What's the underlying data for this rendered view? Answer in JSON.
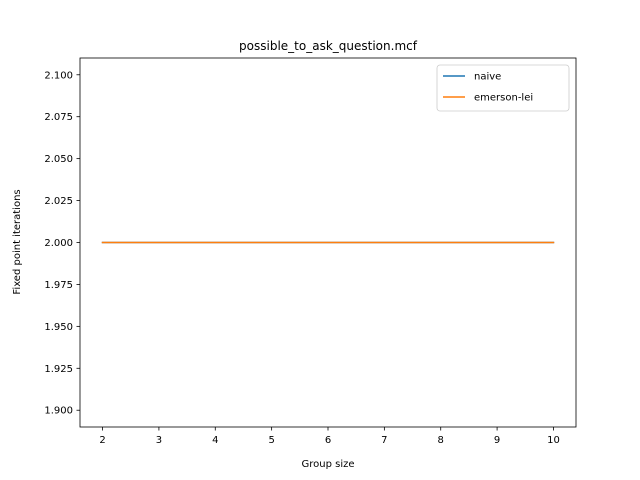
{
  "chart_data": {
    "type": "line",
    "title": "possible_to_ask_question.mcf",
    "xlabel": "Group size",
    "ylabel": "Fixed point iterations",
    "xlim": [
      1.6,
      10.4
    ],
    "ylim": [
      1.89,
      2.11
    ],
    "x_ticks": [
      2,
      3,
      4,
      5,
      6,
      7,
      8,
      9,
      10
    ],
    "y_ticks": [
      1.9,
      1.925,
      1.95,
      1.975,
      2.0,
      2.025,
      2.05,
      2.075,
      2.1
    ],
    "y_tick_labels": [
      "1.900",
      "1.925",
      "1.950",
      "1.975",
      "2.000",
      "2.025",
      "2.050",
      "2.075",
      "2.100"
    ],
    "x": [
      2,
      3,
      4,
      5,
      6,
      7,
      8,
      9,
      10
    ],
    "series": [
      {
        "name": "naive",
        "color": "#1f77b4",
        "values": [
          2,
          2,
          2,
          2,
          2,
          2,
          2,
          2,
          2
        ]
      },
      {
        "name": "emerson-lei",
        "color": "#ff7f0e",
        "values": [
          2,
          2,
          2,
          2,
          2,
          2,
          2,
          2,
          2
        ]
      }
    ],
    "grid": false,
    "legend_position": "top-right"
  }
}
